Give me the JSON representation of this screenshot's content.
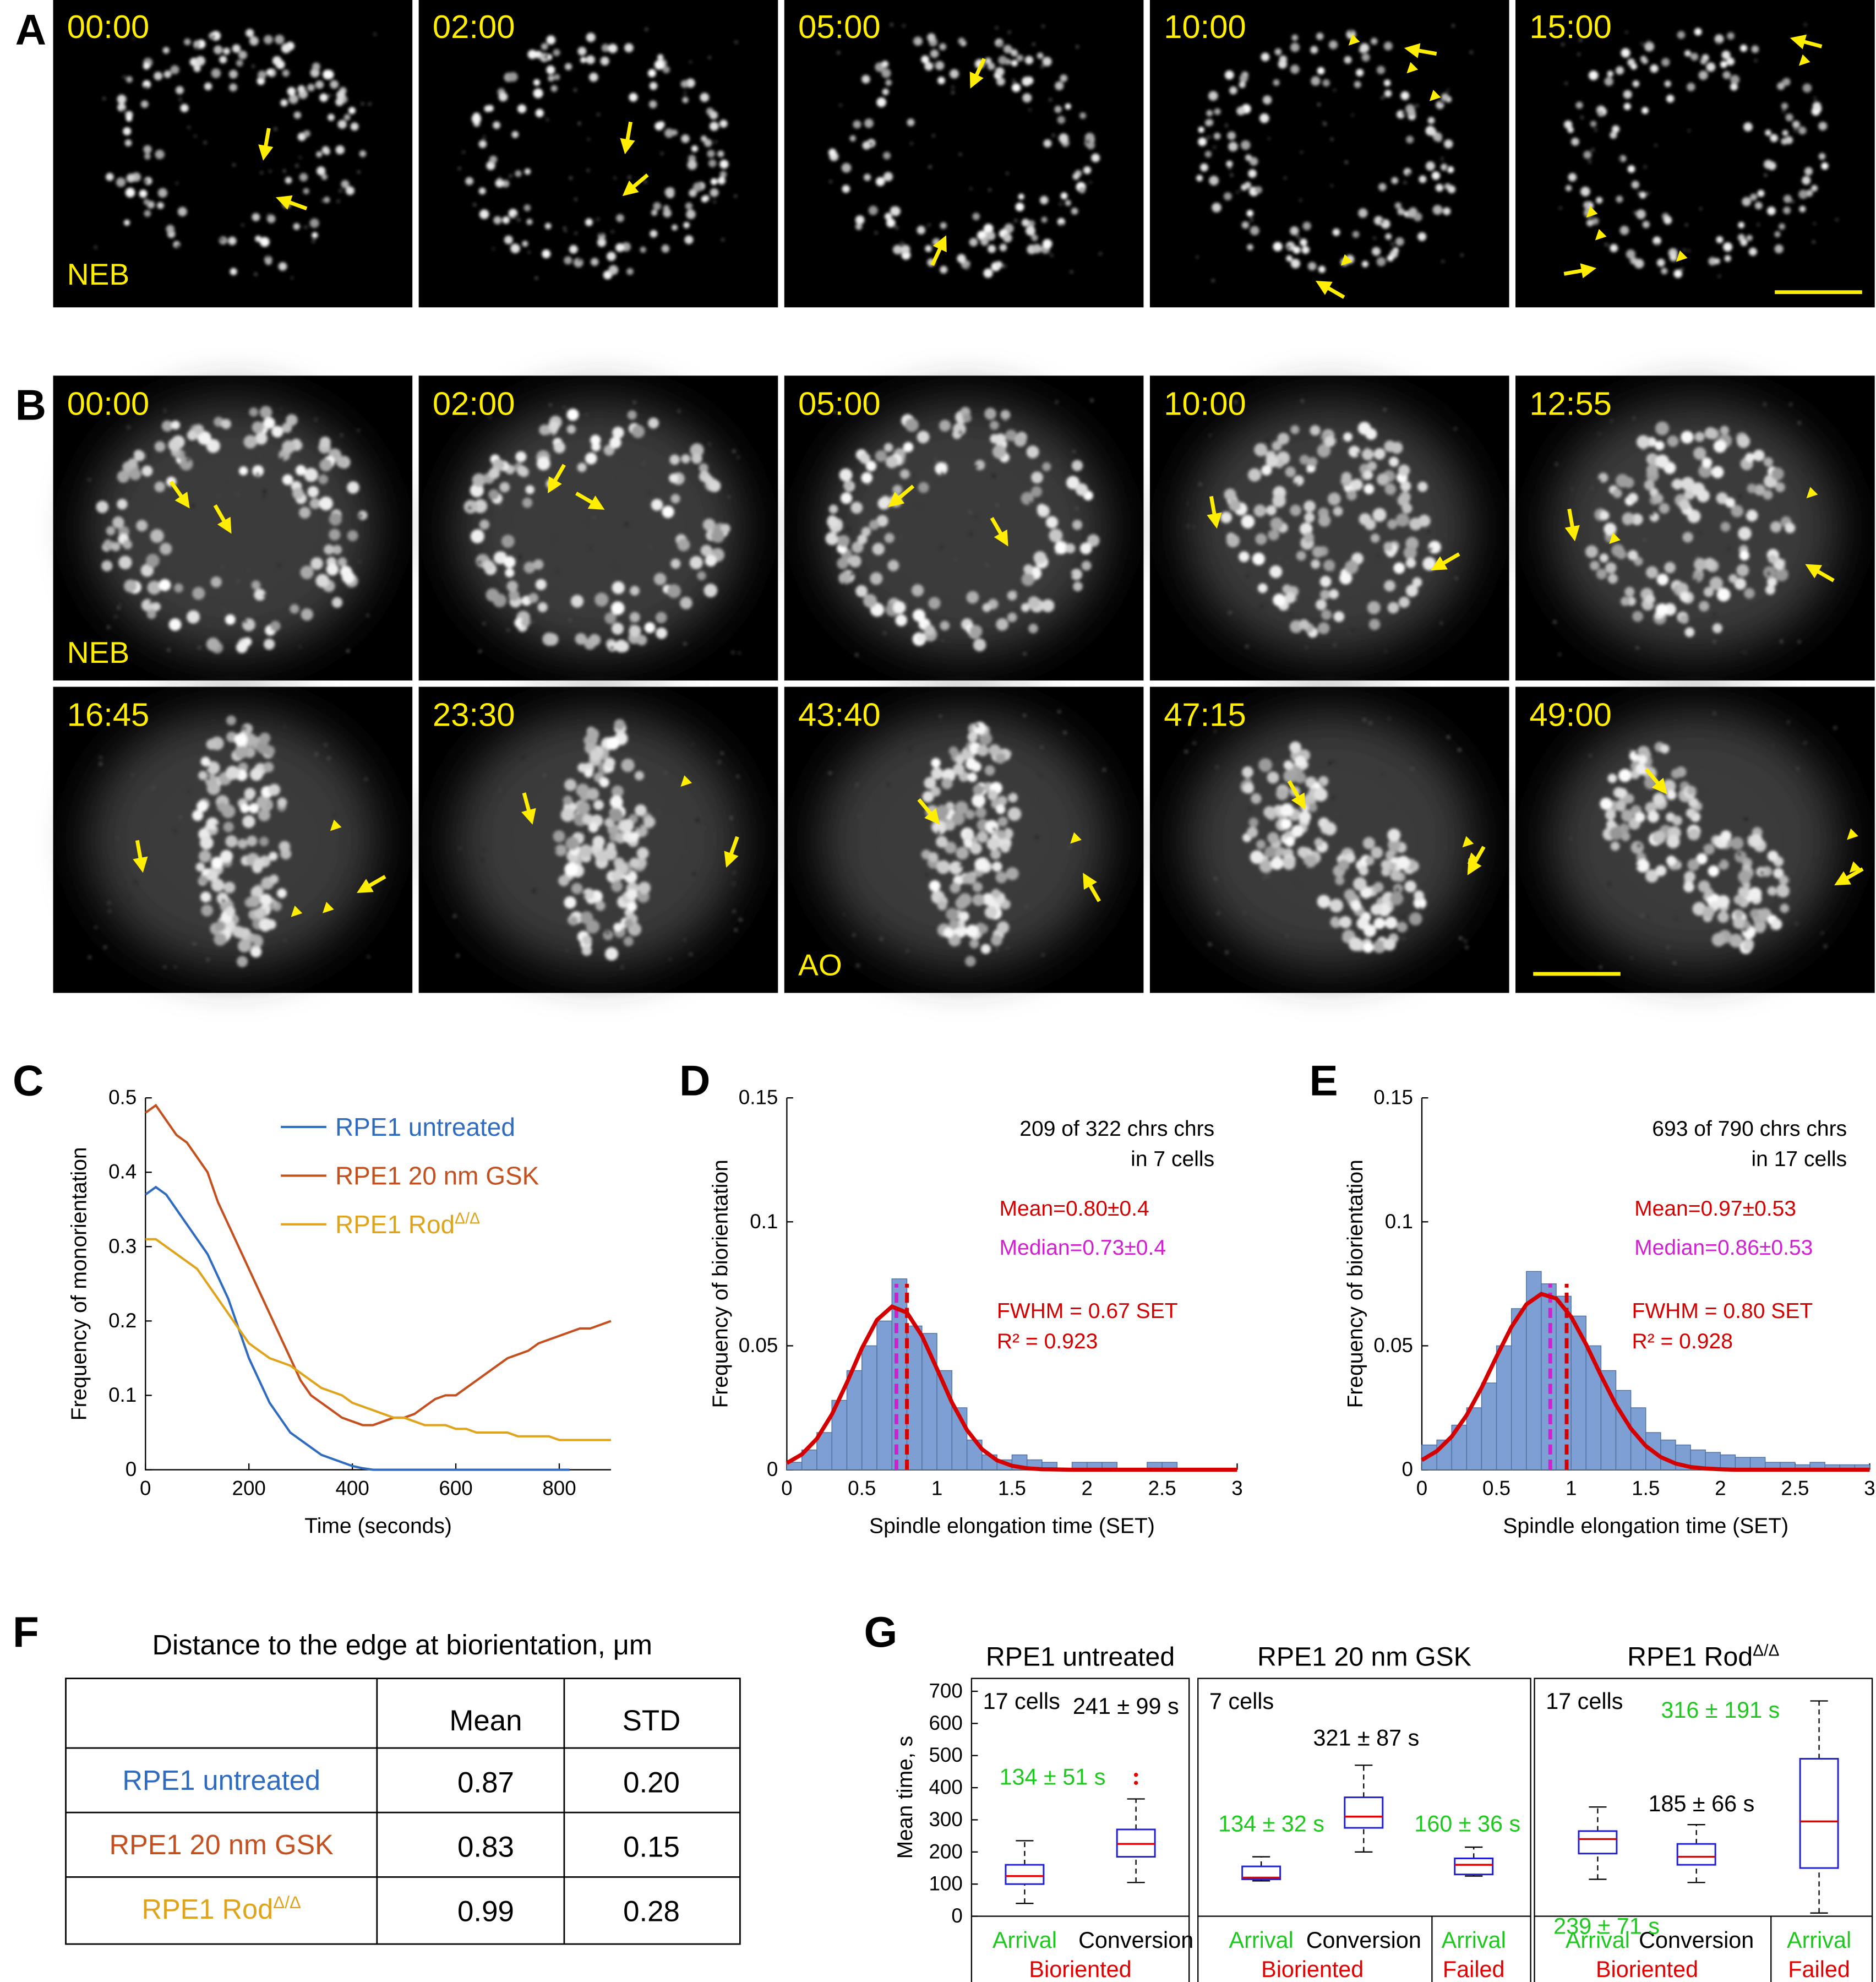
{
  "panel_labels": [
    "A",
    "B",
    "C",
    "D",
    "E",
    "F",
    "G"
  ],
  "panel_A": {
    "frames": [
      {
        "time": "00:00",
        "tag": "NEB"
      },
      {
        "time": "02:00"
      },
      {
        "time": "05:00"
      },
      {
        "time": "10:00"
      },
      {
        "time": "15:00"
      }
    ]
  },
  "panel_B": {
    "frames": [
      {
        "time": "00:00",
        "tag": "NEB"
      },
      {
        "time": "02:00"
      },
      {
        "time": "05:00"
      },
      {
        "time": "10:00"
      },
      {
        "time": "12:55"
      },
      {
        "time": "16:45"
      },
      {
        "time": "23:30"
      },
      {
        "time": "43:40",
        "tag": "AO"
      },
      {
        "time": "47:15"
      },
      {
        "time": "49:00"
      }
    ]
  },
  "chart_data": [
    {
      "type": "line",
      "ylabel": "Frequency of monorientation",
      "xlabel": "Time (seconds)",
      "x": [
        0,
        20,
        40,
        60,
        80,
        100,
        120,
        140,
        160,
        180,
        200,
        220,
        240,
        260,
        280,
        300,
        320,
        340,
        360,
        380,
        400,
        420,
        440,
        460,
        480,
        500,
        520,
        540,
        560,
        580,
        600,
        620,
        640,
        660,
        680,
        700,
        720,
        740,
        760,
        780,
        800,
        820,
        840,
        860,
        880,
        900
      ],
      "xlim": [
        0,
        900
      ],
      "xticks": [
        0,
        200,
        400,
        600,
        800
      ],
      "ylim": [
        0,
        0.5
      ],
      "yticks": [
        0,
        0.1,
        0.2,
        0.3,
        0.4,
        0.5
      ],
      "legend": "upper right",
      "series": [
        {
          "name": "RPE1 untreated",
          "color": "#2f6bbf",
          "values": [
            0.37,
            0.38,
            0.37,
            0.35,
            0.33,
            0.31,
            0.29,
            0.26,
            0.23,
            0.19,
            0.15,
            0.12,
            0.09,
            0.07,
            0.05,
            0.04,
            0.03,
            0.02,
            0.015,
            0.01,
            0.005,
            0.002,
            0,
            0,
            0,
            0,
            0,
            0,
            0,
            0,
            0,
            0,
            0,
            0,
            0,
            0,
            0,
            0,
            0,
            0,
            0,
            0,
            null,
            null,
            null,
            null
          ]
        },
        {
          "name": "RPE1 20 nm GSK",
          "color": "#c4501f",
          "values": [
            0.48,
            0.49,
            0.47,
            0.45,
            0.44,
            0.42,
            0.4,
            0.36,
            0.33,
            0.3,
            0.27,
            0.24,
            0.21,
            0.18,
            0.15,
            0.12,
            0.1,
            0.09,
            0.08,
            0.07,
            0.065,
            0.06,
            0.06,
            0.065,
            0.07,
            0.07,
            0.075,
            0.085,
            0.095,
            0.1,
            0.1,
            0.11,
            0.12,
            0.13,
            0.14,
            0.15,
            0.155,
            0.16,
            0.17,
            0.175,
            0.18,
            0.185,
            0.19,
            0.19,
            0.195,
            0.2
          ]
        },
        {
          "name": "RPE1 Rod",
          "name_superscript": "Δ/Δ",
          "color": "#e0a31c",
          "values": [
            0.31,
            0.31,
            0.3,
            0.29,
            0.28,
            0.27,
            0.25,
            0.23,
            0.21,
            0.19,
            0.17,
            0.16,
            0.15,
            0.145,
            0.14,
            0.13,
            0.12,
            0.11,
            0.105,
            0.1,
            0.09,
            0.085,
            0.08,
            0.075,
            0.07,
            0.07,
            0.065,
            0.06,
            0.06,
            0.06,
            0.055,
            0.055,
            0.05,
            0.05,
            0.05,
            0.05,
            0.045,
            0.045,
            0.045,
            0.045,
            0.04,
            0.04,
            0.04,
            0.04,
            0.04,
            0.04
          ]
        }
      ]
    },
    {
      "type": "histogram",
      "ylabel": "Frequency of biorientation",
      "xlabel": "Spindle elongation time (SET)",
      "bins": [
        0,
        0.1,
        0.2,
        0.3,
        0.4,
        0.5,
        0.6,
        0.7,
        0.8,
        0.9,
        1,
        1.1,
        1.2,
        1.3,
        1.4,
        1.5,
        1.6,
        1.7,
        1.8,
        1.9,
        2,
        2.1,
        2.2,
        2.3,
        2.4,
        2.5,
        2.6,
        2.7,
        2.8,
        2.9,
        3
      ],
      "values": [
        0.003,
        0.008,
        0.015,
        0.028,
        0.04,
        0.05,
        0.06,
        0.077,
        0.058,
        0.055,
        0.04,
        0.025,
        0.012,
        0.006,
        0.004,
        0.006,
        0.004,
        0.003,
        0,
        0.003,
        0.003,
        0.003,
        0,
        0,
        0.003,
        0.003,
        0,
        0,
        0,
        0
      ],
      "color": "#7e9fd3",
      "edge_color": "#4f6f9f",
      "xlim": [
        0,
        3
      ],
      "xticks": [
        0,
        0.5,
        1,
        1.5,
        2,
        2.5,
        3
      ],
      "ylim": [
        0,
        0.15
      ],
      "yticks": [
        0,
        0.05,
        0.1,
        0.15
      ],
      "fit_x": [
        0,
        0.1,
        0.2,
        0.3,
        0.4,
        0.5,
        0.6,
        0.7,
        0.8,
        0.9,
        1,
        1.1,
        1.2,
        1.3,
        1.4,
        1.5,
        1.6,
        1.7,
        1.8,
        1.9,
        2,
        2.1,
        2.2,
        2.3,
        2.4,
        2.5,
        2.6,
        2.7,
        2.8,
        2.9,
        3
      ],
      "fit_values": [
        0.0027,
        0.0062,
        0.0125,
        0.0223,
        0.0351,
        0.049,
        0.0604,
        0.0658,
        0.0634,
        0.054,
        0.0407,
        0.0271,
        0.016,
        0.0083,
        0.0038,
        0.0016,
        0.0006,
        0.0002,
        0.0001,
        0,
        0,
        0,
        0,
        0,
        0,
        0,
        0,
        0,
        0,
        0,
        0
      ],
      "fit_color": "#d40000",
      "mean": 0.8,
      "mean_color": "#d40000",
      "median": 0.73,
      "median_color": "#d020d0",
      "annotations": [
        {
          "text": "209 of 322 chrs chrs",
          "color": "#000000"
        },
        {
          "text": "in 7 cells",
          "color": "#000000"
        },
        {
          "text": "Mean=0.80±0.4",
          "color": "#d40000"
        },
        {
          "text": "Median=0.73±0.4",
          "color": "#d020d0"
        },
        {
          "text": "FWHM = 0.67 SET",
          "color": "#d40000"
        },
        {
          "text": "R² = 0.923",
          "color": "#d40000"
        }
      ]
    },
    {
      "type": "histogram",
      "ylabel": "Frequency of biorientation",
      "xlabel": "Spindle elongation time (SET)",
      "bins": [
        0,
        0.1,
        0.2,
        0.3,
        0.4,
        0.5,
        0.6,
        0.7,
        0.8,
        0.9,
        1,
        1.1,
        1.2,
        1.3,
        1.4,
        1.5,
        1.6,
        1.7,
        1.8,
        1.9,
        2,
        2.1,
        2.2,
        2.3,
        2.4,
        2.5,
        2.6,
        2.7,
        2.8,
        2.9,
        3
      ],
      "values": [
        0.01,
        0.012,
        0.018,
        0.025,
        0.035,
        0.05,
        0.065,
        0.08,
        0.075,
        0.07,
        0.062,
        0.05,
        0.04,
        0.032,
        0.025,
        0.015,
        0.012,
        0.01,
        0.008,
        0.007,
        0.006,
        0.005,
        0.005,
        0.003,
        0.003,
        0.002,
        0.003,
        0.002,
        0.002,
        0.002
      ],
      "color": "#7e9fd3",
      "edge_color": "#4f6f9f",
      "xlim": [
        0,
        3
      ],
      "xticks": [
        0,
        0.5,
        1,
        1.5,
        2,
        2.5,
        3
      ],
      "ylim": [
        0,
        0.15
      ],
      "yticks": [
        0,
        0.05,
        0.1,
        0.15
      ],
      "fit_x": [
        0,
        0.1,
        0.2,
        0.3,
        0.4,
        0.5,
        0.6,
        0.7,
        0.8,
        0.9,
        1,
        1.1,
        1.2,
        1.3,
        1.4,
        1.5,
        1.6,
        1.7,
        1.8,
        1.9,
        2,
        2.1,
        2.2,
        2.3,
        2.4,
        2.5,
        2.6,
        2.7,
        2.8,
        2.9,
        3
      ],
      "fit_values": [
        0.0039,
        0.0075,
        0.0134,
        0.022,
        0.0331,
        0.0456,
        0.0576,
        0.0667,
        0.0709,
        0.0691,
        0.0617,
        0.0506,
        0.038,
        0.0262,
        0.0166,
        0.0096,
        0.0051,
        0.0025,
        0.0011,
        0.0005,
        0.0002,
        0,
        0,
        0,
        0,
        0,
        0,
        0,
        0,
        0,
        0
      ],
      "fit_color": "#d40000",
      "mean": 0.97,
      "mean_color": "#d40000",
      "median": 0.86,
      "median_color": "#d020d0",
      "annotations": [
        {
          "text": "693 of 790 chrs chrs",
          "color": "#000000"
        },
        {
          "text": "in 17 cells",
          "color": "#000000"
        },
        {
          "text": "Mean=0.97±0.53",
          "color": "#d40000"
        },
        {
          "text": "Median=0.86±0.53",
          "color": "#d020d0"
        },
        {
          "text": "FWHM = 0.80 SET",
          "color": "#d40000"
        },
        {
          "text": "R² = 0.928",
          "color": "#d40000"
        }
      ]
    },
    {
      "type": "box",
      "ylabel": "Mean time, s",
      "ylim": [
        0,
        740
      ],
      "yticks": [
        0,
        100,
        200,
        300,
        400,
        500,
        600,
        700
      ],
      "box_color": "#2020d0",
      "median_color": "#e00000",
      "groups": [
        {
          "title": "RPE1 untreated",
          "note": "17 cells",
          "categories": [
            "Arrival",
            "Conversion"
          ],
          "category_colors": [
            "#1ec81e",
            "#000000"
          ],
          "sections": [
            {
              "label": "Bioriented",
              "color": "#e00000"
            }
          ],
          "boxes": [
            {
              "whislo": 40,
              "q1": 100,
              "med": 125,
              "q3": 160,
              "whishi": 235
            },
            {
              "whislo": 105,
              "q1": 185,
              "med": 225,
              "q3": 270,
              "whishi": 365,
              "fliers": [
                415,
                440
              ]
            }
          ],
          "annotations": [
            {
              "text": "134 ± 51 s",
              "color": "#1ec81e"
            },
            {
              "text": "241 ± 99 s",
              "color": "#000000"
            }
          ]
        },
        {
          "title": "RPE1 20 nm GSK",
          "note": "7 cells",
          "categories": [
            "Arrival",
            "Conversion",
            "Arrival"
          ],
          "category_colors": [
            "#1ec81e",
            "#000000",
            "#1ec81e"
          ],
          "sections": [
            {
              "label": "Bioriented",
              "color": "#e00000"
            },
            {
              "label": "Failed",
              "color": "#e00000"
            }
          ],
          "boxes": [
            {
              "whislo": 110,
              "q1": 115,
              "med": 120,
              "q3": 155,
              "whishi": 185
            },
            {
              "whislo": 200,
              "q1": 275,
              "med": 310,
              "q3": 370,
              "whishi": 470
            },
            {
              "whislo": 125,
              "q1": 130,
              "med": 160,
              "q3": 180,
              "whishi": 215
            }
          ],
          "annotations": [
            {
              "text": "134 ± 32 s",
              "color": "#1ec81e"
            },
            {
              "text": "321 ± 87 s",
              "color": "#000000"
            },
            {
              "text": "160 ± 36 s",
              "color": "#1ec81e"
            }
          ]
        },
        {
          "title": "RPE1 Rod",
          "title_superscript": "Δ/Δ",
          "note": "17 cells",
          "categories": [
            "Arrival",
            "Conversion",
            "Arrival"
          ],
          "category_colors": [
            "#1ec81e",
            "#000000",
            "#1ec81e"
          ],
          "sections": [
            {
              "label": "Bioriented",
              "color": "#e00000"
            },
            {
              "label": "Failed",
              "color": "#e00000"
            }
          ],
          "boxes": [
            {
              "whislo": 115,
              "q1": 195,
              "med": 240,
              "q3": 265,
              "whishi": 340
            },
            {
              "whislo": 105,
              "q1": 160,
              "med": 185,
              "q3": 225,
              "whishi": 285
            },
            {
              "whislo": 10,
              "q1": 150,
              "med": 295,
              "q3": 490,
              "whishi": 670
            }
          ],
          "annotations": [
            {
              "text": "316 ± 191 s",
              "color": "#1ec81e"
            },
            {
              "text": "185 ± 66 s",
              "color": "#000000"
            },
            {
              "text": "239 ± 71 s",
              "color": "#1ec81e"
            }
          ]
        }
      ]
    }
  ],
  "table": {
    "title": "Distance to the edge at biorientation, μm",
    "header": [
      "Mean",
      "STD"
    ],
    "rows": [
      {
        "label": "RPE1 untreated",
        "color": "#2f6bbf",
        "values": [
          "0.87",
          "0.20"
        ]
      },
      {
        "label": "RPE1 20 nm GSK",
        "color": "#c4501f",
        "values": [
          "0.83",
          "0.15"
        ]
      },
      {
        "label": "RPE1 Rod",
        "label_superscript": "Δ/Δ",
        "color": "#e0a31c",
        "values": [
          "0.99",
          "0.28"
        ]
      }
    ]
  }
}
